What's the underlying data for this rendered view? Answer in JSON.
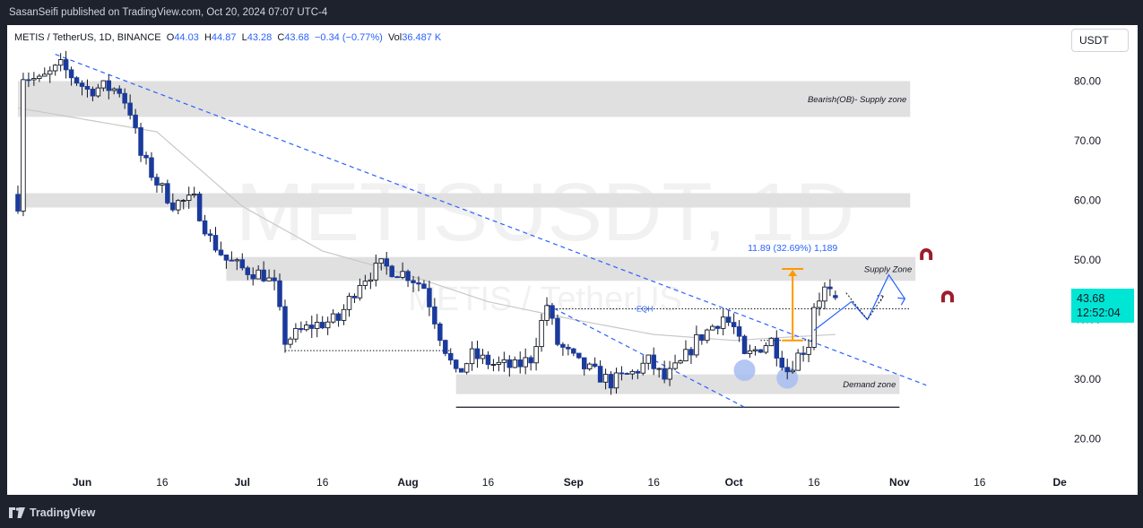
{
  "header": {
    "publisher_text": "SasanSeifi published on TradingView.com, Oct 20, 2024 07:07 UTC-4"
  },
  "footer": {
    "logo_text": "TradingView",
    "logo_icon": "tradingview-logo-icon"
  },
  "toolbar": {
    "currency": "USDT"
  },
  "legend": {
    "symbol": "METIS / TetherUS, 1D, BINANCE",
    "open_label": "O",
    "open": "44.03",
    "high_label": "H",
    "high": "44.87",
    "low_label": "L",
    "low": "43.28",
    "close_label": "C",
    "close": "43.68",
    "change": "−0.34 (−0.77%)",
    "volume_label": "Vol",
    "volume": "36.487 K"
  },
  "price_tag": {
    "price": "43.68",
    "countdown": "12:52:04"
  },
  "chart_data": {
    "type": "candlestick",
    "symbol": "METISUSDT",
    "interval": "1D",
    "watermark_main": "METISUSDT, 1D",
    "watermark_sub": "METIS / TetherUS",
    "y_axis": {
      "range": [
        14.5,
        88.5
      ],
      "ticks": [
        "80.00",
        "70.00",
        "60.00",
        "50.00",
        "40.00",
        "30.00",
        "20.00"
      ],
      "tick_values": [
        80,
        70,
        60,
        50,
        40,
        30,
        20
      ]
    },
    "x_axis": {
      "labels": [
        {
          "text": "Jun",
          "date": "2024-06-01"
        },
        {
          "text": "16",
          "date": "2024-06-16"
        },
        {
          "text": "Jul",
          "date": "2024-07-01"
        },
        {
          "text": "16",
          "date": "2024-07-16"
        },
        {
          "text": "Aug",
          "date": "2024-08-01"
        },
        {
          "text": "16",
          "date": "2024-08-16"
        },
        {
          "text": "Sep",
          "date": "2024-09-01"
        },
        {
          "text": "16",
          "date": "2024-09-16"
        },
        {
          "text": "Oct",
          "date": "2024-10-01"
        },
        {
          "text": "16",
          "date": "2024-10-16"
        },
        {
          "text": "Nov",
          "date": "2024-11-01"
        },
        {
          "text": "16",
          "date": "2024-11-16"
        },
        {
          "text": "De",
          "date": "2024-12-01"
        }
      ]
    },
    "price_series": {
      "start_date": "2024-05-20",
      "end_date": "2024-10-20",
      "anchors": [
        [
          "2024-05-20",
          59.5
        ],
        [
          "2024-05-21",
          81
        ],
        [
          "2024-05-24",
          80
        ],
        [
          "2024-05-28",
          82.5
        ],
        [
          "2024-06-02",
          78.5
        ],
        [
          "2024-06-05",
          79
        ],
        [
          "2024-06-08",
          78.5
        ],
        [
          "2024-06-10",
          75
        ],
        [
          "2024-06-12",
          67.5
        ],
        [
          "2024-06-15",
          63
        ],
        [
          "2024-06-18",
          59.5
        ],
        [
          "2024-06-22",
          60
        ],
        [
          "2024-06-25",
          53.5
        ],
        [
          "2024-06-28",
          50
        ],
        [
          "2024-07-01",
          48.5
        ],
        [
          "2024-07-05",
          47.5
        ],
        [
          "2024-07-07",
          45.5
        ],
        [
          "2024-07-09",
          36.5
        ],
        [
          "2024-07-14",
          39
        ],
        [
          "2024-07-19",
          40
        ],
        [
          "2024-07-23",
          46.5
        ],
        [
          "2024-07-27",
          49
        ],
        [
          "2024-08-01",
          47.5
        ],
        [
          "2024-08-04",
          45.5
        ],
        [
          "2024-08-07",
          37.5
        ],
        [
          "2024-08-10",
          30.5
        ],
        [
          "2024-08-13",
          34
        ],
        [
          "2024-08-17",
          32.5
        ],
        [
          "2024-08-21",
          32
        ],
        [
          "2024-08-24",
          33.5
        ],
        [
          "2024-08-27",
          42.5
        ],
        [
          "2024-08-29",
          36
        ],
        [
          "2024-09-02",
          32.5
        ],
        [
          "2024-09-08",
          29.5
        ],
        [
          "2024-09-12",
          31
        ],
        [
          "2024-09-15",
          33
        ],
        [
          "2024-09-18",
          30
        ],
        [
          "2024-09-21",
          32.5
        ],
        [
          "2024-09-24",
          36.5
        ],
        [
          "2024-09-29",
          40.5
        ],
        [
          "2024-10-01",
          38.5
        ],
        [
          "2024-10-03",
          33.5
        ],
        [
          "2024-10-06",
          35.5
        ],
        [
          "2024-10-08",
          36.5
        ],
        [
          "2024-10-11",
          31.5
        ],
        [
          "2024-10-13",
          34
        ],
        [
          "2024-10-15",
          36
        ],
        [
          "2024-10-16",
          42.5
        ],
        [
          "2024-10-18",
          45
        ],
        [
          "2024-10-20",
          43.68
        ]
      ]
    },
    "moving_average": {
      "color": "#c8c8c8",
      "anchors": [
        [
          "2024-05-20",
          75.5
        ],
        [
          "2024-06-15",
          71.5
        ],
        [
          "2024-07-01",
          59
        ],
        [
          "2024-07-16",
          51.5
        ],
        [
          "2024-08-01",
          47.5
        ],
        [
          "2024-08-16",
          43
        ],
        [
          "2024-09-01",
          40
        ],
        [
          "2024-09-16",
          37.5
        ],
        [
          "2024-10-01",
          36.5
        ],
        [
          "2024-10-10",
          37
        ],
        [
          "2024-10-20",
          37.5
        ]
      ]
    },
    "zones": [
      {
        "label": "Bearish(OB)- Supply zone",
        "from_date": "2024-05-20",
        "to_date": "2024-11-03",
        "low": 74,
        "high": 80,
        "color": "#e0e0e0"
      },
      {
        "label": "",
        "from_date": "2024-05-20",
        "to_date": "2024-11-03",
        "low": 58.8,
        "high": 61.2,
        "color": "#e0e0e0"
      },
      {
        "label": "Supply Zone",
        "from_date": "2024-06-28",
        "to_date": "2024-11-04",
        "low": 46.5,
        "high": 50.5,
        "color": "#e0e0e0"
      },
      {
        "label": "Demand zone",
        "from_date": "2024-08-10",
        "to_date": "2024-11-01",
        "low": 27.5,
        "high": 30.8,
        "color": "#e0e0e0"
      }
    ],
    "trendlines": [
      {
        "style": "dashed",
        "color": "#2962ff",
        "from": [
          "2024-05-27",
          84.5
        ],
        "to": [
          "2024-11-06",
          29
        ]
      },
      {
        "style": "dashed",
        "color": "#2962ff",
        "from": [
          "2024-08-27",
          42.5
        ],
        "to": [
          "2024-10-03",
          25.3
        ]
      }
    ],
    "levels": [
      {
        "style": "solid",
        "color": "#131722",
        "from": [
          "2024-08-10",
          25.3
        ],
        "to": [
          "2024-11-01",
          25.3
        ]
      },
      {
        "style": "dotted",
        "color": "#131722",
        "from": [
          "2024-07-09",
          34.8
        ],
        "to": [
          "2024-08-09",
          34.8
        ]
      },
      {
        "style": "dotted",
        "color": "#131722",
        "label": "EQH",
        "from": [
          "2024-08-27",
          41.8
        ],
        "to": [
          "2024-11-03",
          41.8
        ]
      },
      {
        "style": "dotted",
        "color": "#131722",
        "from": [
          "2024-10-06",
          36.5
        ],
        "to": [
          "2024-10-16",
          36.5
        ]
      }
    ],
    "measure": {
      "label": "11.89 (32.69%) 1,189",
      "color": "#ff9800",
      "from": [
        "2024-10-12",
        36.5
      ],
      "to": [
        "2024-10-12",
        48.5
      ],
      "start_date": "2024-10-10",
      "end_date": "2024-10-14"
    },
    "highlights": [
      {
        "date": "2024-10-03",
        "price": 31.5,
        "color": "#a7bdf0"
      },
      {
        "date": "2024-10-11",
        "price": 30.2,
        "color": "#a7bdf0"
      }
    ],
    "projection": {
      "color": "#2962ff",
      "points": [
        [
          "2024-10-16",
          38.2
        ],
        [
          "2024-10-23",
          43
        ],
        [
          "2024-10-26",
          40
        ],
        [
          "2024-10-30",
          47.5
        ],
        [
          "2024-11-02",
          43.5
        ]
      ]
    },
    "projection_alt": {
      "color": "#131722",
      "points": [
        [
          "2024-10-22",
          44.5
        ],
        [
          "2024-10-26",
          40
        ],
        [
          "2024-10-29",
          44
        ]
      ]
    },
    "magnet_icons": [
      {
        "date": "2024-11-06",
        "price": 50.9
      },
      {
        "date": "2024-11-10",
        "price": 43.8
      }
    ],
    "last_price": 43.68
  }
}
